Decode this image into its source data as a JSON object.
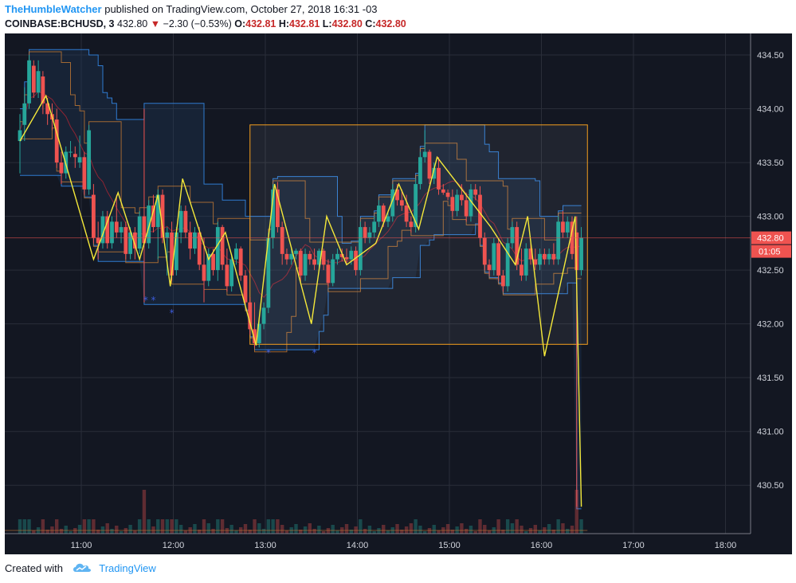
{
  "header": {
    "author": "TheHumbleWatcher",
    "published_text": "published on TradingView.com, October 27, 2018 16:31 -03"
  },
  "symbol_line": {
    "symbol": "COINBASE:BCHUSD, 3",
    "last": "432.80",
    "change": "−2.30 (−0.53%)",
    "o_label": "O:",
    "o": "432.81",
    "h_label": "H:",
    "h": "432.81",
    "l_label": "L:",
    "l": "432.80",
    "c_label": "C:",
    "c": "432.80"
  },
  "footer": {
    "created_with": "Created with",
    "brand": "TradingView",
    "logo_icon": "tradingview-cloud-icon"
  },
  "colors": {
    "background": "#131722",
    "grid": "#2a2e39",
    "up": "#26a69a",
    "down": "#ef5350",
    "zigzag": "#f5e93a",
    "channel": "#2f7bd0",
    "box": "#f59f1e",
    "price_badge": "#ef5350"
  },
  "chart_data": {
    "type": "candlestick",
    "x_ticks": [
      "11:00",
      "12:00",
      "13:00",
      "14:00",
      "15:00",
      "16:00",
      "17:00",
      "18:00"
    ],
    "y_ticks": [
      "434.50",
      "434.00",
      "433.50",
      "433.00",
      "432.50",
      "432.00",
      "431.50",
      "431.00",
      "430.50"
    ],
    "ylim": [
      430.05,
      434.7
    ],
    "last_price_label": "432.80",
    "countdown_label": "01:05",
    "grid": true,
    "zigzag": [
      {
        "t": "10:20",
        "p": 433.7
      },
      {
        "t": "10:37",
        "p": 434.12
      },
      {
        "t": "11:08",
        "p": 432.6
      },
      {
        "t": "11:24",
        "p": 433.22
      },
      {
        "t": "11:38",
        "p": 432.6
      },
      {
        "t": "11:50",
        "p": 433.2
      },
      {
        "t": "11:58",
        "p": 432.35
      },
      {
        "t": "12:06",
        "p": 433.35
      },
      {
        "t": "12:23",
        "p": 432.6
      },
      {
        "t": "12:34",
        "p": 432.85
      },
      {
        "t": "12:54",
        "p": 431.8
      },
      {
        "t": "13:06",
        "p": 433.3
      },
      {
        "t": "13:30",
        "p": 432.0
      },
      {
        "t": "13:40",
        "p": 433.0
      },
      {
        "t": "13:53",
        "p": 432.55
      },
      {
        "t": "14:12",
        "p": 432.75
      },
      {
        "t": "14:27",
        "p": 433.3
      },
      {
        "t": "14:40",
        "p": 432.88
      },
      {
        "t": "14:52",
        "p": 433.55
      },
      {
        "t": "15:27",
        "p": 432.9
      },
      {
        "t": "15:43",
        "p": 432.55
      },
      {
        "t": "15:51",
        "p": 433.0
      },
      {
        "t": "16:02",
        "p": 431.7
      },
      {
        "t": "16:22",
        "p": 433.0
      },
      {
        "t": "16:26",
        "p": 430.3
      }
    ],
    "candles": [
      {
        "t": "10:20",
        "o": 433.7,
        "h": 433.95,
        "l": 433.4,
        "c": 433.8
      },
      {
        "t": "10:23",
        "o": 433.85,
        "h": 434.2,
        "l": 433.7,
        "c": 434.05
      },
      {
        "t": "10:26",
        "o": 434.05,
        "h": 434.5,
        "l": 434.0,
        "c": 434.45
      },
      {
        "t": "10:29",
        "o": 434.4,
        "h": 434.45,
        "l": 434.1,
        "c": 434.15
      },
      {
        "t": "10:32",
        "o": 434.15,
        "h": 434.45,
        "l": 434.1,
        "c": 434.35
      },
      {
        "t": "10:35",
        "o": 434.3,
        "h": 434.35,
        "l": 433.95,
        "c": 434.05
      },
      {
        "t": "10:38",
        "o": 434.05,
        "h": 434.1,
        "l": 433.85,
        "c": 433.95
      },
      {
        "t": "10:41",
        "o": 433.95,
        "h": 434.05,
        "l": 433.8,
        "c": 433.9
      },
      {
        "t": "10:44",
        "o": 433.9,
        "h": 434.0,
        "l": 433.45,
        "c": 433.5
      },
      {
        "t": "10:47",
        "o": 433.5,
        "h": 433.6,
        "l": 433.3,
        "c": 433.4
      },
      {
        "t": "10:50",
        "o": 433.4,
        "h": 433.65,
        "l": 433.35,
        "c": 433.6
      },
      {
        "t": "10:53",
        "o": 433.6,
        "h": 433.7,
        "l": 433.55,
        "c": 433.6
      },
      {
        "t": "10:56",
        "o": 433.58,
        "h": 433.65,
        "l": 433.45,
        "c": 433.55
      },
      {
        "t": "10:59",
        "o": 433.5,
        "h": 433.75,
        "l": 433.45,
        "c": 433.55
      },
      {
        "t": "11:02",
        "o": 433.55,
        "h": 433.6,
        "l": 433.2,
        "c": 433.25
      },
      {
        "t": "11:05",
        "o": 433.25,
        "h": 433.85,
        "l": 433.2,
        "c": 433.8
      },
      {
        "t": "11:08",
        "o": 433.2,
        "h": 433.3,
        "l": 432.75,
        "c": 432.8
      },
      {
        "t": "11:11",
        "o": 432.8,
        "h": 432.95,
        "l": 432.6,
        "c": 432.75
      },
      {
        "t": "11:14",
        "o": 432.75,
        "h": 433.05,
        "l": 432.7,
        "c": 433.0
      },
      {
        "t": "11:17",
        "o": 433.0,
        "h": 433.05,
        "l": 432.7,
        "c": 432.75
      },
      {
        "t": "11:20",
        "o": 432.75,
        "h": 433.0,
        "l": 432.7,
        "c": 432.95
      },
      {
        "t": "11:23",
        "o": 432.95,
        "h": 433.2,
        "l": 432.8,
        "c": 432.85
      },
      {
        "t": "11:26",
        "o": 432.85,
        "h": 432.95,
        "l": 432.75,
        "c": 432.9
      },
      {
        "t": "11:29",
        "o": 432.9,
        "h": 432.95,
        "l": 432.6,
        "c": 432.65
      },
      {
        "t": "11:32",
        "o": 432.65,
        "h": 432.9,
        "l": 432.6,
        "c": 432.85
      },
      {
        "t": "11:35",
        "o": 432.85,
        "h": 432.9,
        "l": 432.6,
        "c": 432.7
      },
      {
        "t": "11:38",
        "o": 432.7,
        "h": 433.05,
        "l": 432.65,
        "c": 433.0
      },
      {
        "t": "11:41",
        "o": 433.0,
        "h": 434.0,
        "l": 432.2,
        "c": 432.75
      },
      {
        "t": "11:44",
        "o": 432.75,
        "h": 433.15,
        "l": 432.7,
        "c": 433.1
      },
      {
        "t": "11:47",
        "o": 433.1,
        "h": 433.2,
        "l": 432.85,
        "c": 432.9
      },
      {
        "t": "11:50",
        "o": 432.9,
        "h": 433.25,
        "l": 432.6,
        "c": 433.2
      },
      {
        "t": "11:53",
        "o": 433.2,
        "h": 433.25,
        "l": 432.75,
        "c": 432.8
      },
      {
        "t": "11:56",
        "o": 432.8,
        "h": 432.9,
        "l": 432.45,
        "c": 432.85
      },
      {
        "t": "11:59",
        "o": 432.85,
        "h": 432.95,
        "l": 432.4,
        "c": 432.45
      },
      {
        "t": "12:02",
        "o": 432.5,
        "h": 432.9,
        "l": 432.45,
        "c": 432.85
      },
      {
        "t": "12:05",
        "o": 432.85,
        "h": 433.1,
        "l": 432.75,
        "c": 433.05
      },
      {
        "t": "12:08",
        "o": 433.05,
        "h": 433.1,
        "l": 432.8,
        "c": 432.85
      },
      {
        "t": "12:11",
        "o": 432.85,
        "h": 432.95,
        "l": 432.6,
        "c": 432.7
      },
      {
        "t": "12:14",
        "o": 432.7,
        "h": 432.9,
        "l": 432.65,
        "c": 432.85
      },
      {
        "t": "12:17",
        "o": 432.85,
        "h": 432.9,
        "l": 432.5,
        "c": 432.55
      },
      {
        "t": "12:20",
        "o": 432.55,
        "h": 432.8,
        "l": 432.2,
        "c": 432.4
      },
      {
        "t": "12:23",
        "o": 432.4,
        "h": 432.7,
        "l": 432.35,
        "c": 432.65
      },
      {
        "t": "12:26",
        "o": 432.65,
        "h": 432.7,
        "l": 432.45,
        "c": 432.5
      },
      {
        "t": "12:29",
        "o": 432.5,
        "h": 432.95,
        "l": 432.4,
        "c": 432.9
      },
      {
        "t": "12:32",
        "o": 432.9,
        "h": 432.92,
        "l": 432.5,
        "c": 432.55
      },
      {
        "t": "12:35",
        "o": 432.55,
        "h": 432.7,
        "l": 432.3,
        "c": 432.35
      },
      {
        "t": "12:38",
        "o": 432.35,
        "h": 432.65,
        "l": 432.3,
        "c": 432.6
      },
      {
        "t": "12:41",
        "o": 432.6,
        "h": 432.75,
        "l": 432.55,
        "c": 432.7
      },
      {
        "t": "12:44",
        "o": 432.7,
        "h": 432.72,
        "l": 432.4,
        "c": 432.45
      },
      {
        "t": "12:47",
        "o": 432.45,
        "h": 432.5,
        "l": 432.15,
        "c": 432.2
      },
      {
        "t": "12:50",
        "o": 432.2,
        "h": 432.25,
        "l": 431.9,
        "c": 431.95
      },
      {
        "t": "12:53",
        "o": 431.95,
        "h": 432.2,
        "l": 431.78,
        "c": 431.82
      },
      {
        "t": "12:56",
        "o": 431.82,
        "h": 432.05,
        "l": 431.78,
        "c": 432.0
      },
      {
        "t": "12:59",
        "o": 432.0,
        "h": 432.2,
        "l": 431.95,
        "c": 432.15
      },
      {
        "t": "13:02",
        "o": 432.15,
        "h": 432.85,
        "l": 432.1,
        "c": 432.8
      },
      {
        "t": "13:05",
        "o": 432.8,
        "h": 433.3,
        "l": 432.7,
        "c": 433.25
      },
      {
        "t": "13:08",
        "o": 433.25,
        "h": 433.32,
        "l": 432.85,
        "c": 432.9
      },
      {
        "t": "13:11",
        "o": 432.9,
        "h": 432.95,
        "l": 432.55,
        "c": 432.65
      },
      {
        "t": "13:14",
        "o": 432.65,
        "h": 432.7,
        "l": 432.55,
        "c": 432.6
      },
      {
        "t": "13:17",
        "o": 432.6,
        "h": 432.7,
        "l": 432.55,
        "c": 432.65
      },
      {
        "t": "13:20",
        "o": 432.65,
        "h": 432.7,
        "l": 432.6,
        "c": 432.68
      },
      {
        "t": "13:23",
        "o": 432.68,
        "h": 432.7,
        "l": 432.4,
        "c": 432.45
      },
      {
        "t": "13:26",
        "o": 432.45,
        "h": 432.7,
        "l": 432.4,
        "c": 432.65
      },
      {
        "t": "13:29",
        "o": 432.65,
        "h": 432.68,
        "l": 432.55,
        "c": 432.6
      },
      {
        "t": "13:32",
        "o": 432.6,
        "h": 432.7,
        "l": 432.5,
        "c": 432.55
      },
      {
        "t": "13:35",
        "o": 432.55,
        "h": 432.7,
        "l": 432.5,
        "c": 432.68
      },
      {
        "t": "13:38",
        "o": 432.68,
        "h": 432.7,
        "l": 432.5,
        "c": 432.55
      },
      {
        "t": "13:41",
        "o": 432.55,
        "h": 432.6,
        "l": 432.35,
        "c": 432.38
      },
      {
        "t": "13:44",
        "o": 432.38,
        "h": 432.65,
        "l": 432.35,
        "c": 432.6
      },
      {
        "t": "13:47",
        "o": 432.6,
        "h": 432.7,
        "l": 432.55,
        "c": 432.65
      },
      {
        "t": "13:50",
        "o": 432.65,
        "h": 432.7,
        "l": 432.58,
        "c": 432.62
      },
      {
        "t": "13:53",
        "o": 432.62,
        "h": 432.7,
        "l": 432.55,
        "c": 432.6
      },
      {
        "t": "13:56",
        "o": 432.6,
        "h": 432.72,
        "l": 432.55,
        "c": 432.68
      },
      {
        "t": "13:59",
        "o": 432.68,
        "h": 432.72,
        "l": 432.45,
        "c": 432.5
      },
      {
        "t": "14:02",
        "o": 432.5,
        "h": 432.95,
        "l": 432.45,
        "c": 432.9
      },
      {
        "t": "14:05",
        "o": 432.9,
        "h": 432.95,
        "l": 432.75,
        "c": 432.8
      },
      {
        "t": "14:08",
        "o": 432.8,
        "h": 432.9,
        "l": 432.75,
        "c": 432.85
      },
      {
        "t": "14:11",
        "o": 432.85,
        "h": 433.0,
        "l": 432.8,
        "c": 432.95
      },
      {
        "t": "14:14",
        "o": 432.95,
        "h": 433.15,
        "l": 432.9,
        "c": 433.1
      },
      {
        "t": "14:17",
        "o": 433.1,
        "h": 433.12,
        "l": 432.9,
        "c": 432.95
      },
      {
        "t": "14:20",
        "o": 432.95,
        "h": 433.05,
        "l": 432.9,
        "c": 433.0
      },
      {
        "t": "14:23",
        "o": 433.0,
        "h": 433.3,
        "l": 432.95,
        "c": 433.25
      },
      {
        "t": "14:26",
        "o": 433.25,
        "h": 433.3,
        "l": 433.1,
        "c": 433.15
      },
      {
        "t": "14:29",
        "o": 433.15,
        "h": 433.25,
        "l": 433.05,
        "c": 433.1
      },
      {
        "t": "14:32",
        "o": 433.1,
        "h": 433.2,
        "l": 432.9,
        "c": 432.95
      },
      {
        "t": "14:35",
        "o": 432.95,
        "h": 433.0,
        "l": 432.85,
        "c": 432.9
      },
      {
        "t": "14:38",
        "o": 432.9,
        "h": 433.35,
        "l": 432.85,
        "c": 433.3
      },
      {
        "t": "14:41",
        "o": 433.3,
        "h": 433.6,
        "l": 433.25,
        "c": 433.55
      },
      {
        "t": "14:44",
        "o": 433.55,
        "h": 433.8,
        "l": 433.5,
        "c": 433.6
      },
      {
        "t": "14:47",
        "o": 433.6,
        "h": 433.62,
        "l": 433.3,
        "c": 433.35
      },
      {
        "t": "14:50",
        "o": 433.35,
        "h": 433.5,
        "l": 433.3,
        "c": 433.45
      },
      {
        "t": "14:53",
        "o": 433.45,
        "h": 433.55,
        "l": 433.2,
        "c": 433.25
      },
      {
        "t": "14:56",
        "o": 433.25,
        "h": 433.3,
        "l": 433.2,
        "c": 433.22
      },
      {
        "t": "14:59",
        "o": 433.22,
        "h": 433.25,
        "l": 433.15,
        "c": 433.18
      },
      {
        "t": "15:02",
        "o": 433.18,
        "h": 433.25,
        "l": 433.0,
        "c": 433.05
      },
      {
        "t": "15:05",
        "o": 433.05,
        "h": 433.25,
        "l": 433.0,
        "c": 433.2
      },
      {
        "t": "15:08",
        "o": 433.2,
        "h": 433.3,
        "l": 433.1,
        "c": 433.15
      },
      {
        "t": "15:11",
        "o": 433.15,
        "h": 433.22,
        "l": 432.95,
        "c": 433.0
      },
      {
        "t": "15:14",
        "o": 433.0,
        "h": 433.3,
        "l": 432.95,
        "c": 433.25
      },
      {
        "t": "15:17",
        "o": 433.25,
        "h": 433.3,
        "l": 433.15,
        "c": 433.2
      },
      {
        "t": "15:20",
        "o": 433.2,
        "h": 433.28,
        "l": 432.75,
        "c": 432.8
      },
      {
        "t": "15:23",
        "o": 432.8,
        "h": 432.85,
        "l": 432.5,
        "c": 432.55
      },
      {
        "t": "15:26",
        "o": 432.55,
        "h": 432.6,
        "l": 432.45,
        "c": 432.5
      },
      {
        "t": "15:29",
        "o": 432.5,
        "h": 432.8,
        "l": 432.45,
        "c": 432.75
      },
      {
        "t": "15:32",
        "o": 432.75,
        "h": 432.8,
        "l": 432.4,
        "c": 432.45
      },
      {
        "t": "15:35",
        "o": 432.45,
        "h": 432.5,
        "l": 432.3,
        "c": 432.35
      },
      {
        "t": "15:38",
        "o": 432.35,
        "h": 432.8,
        "l": 432.3,
        "c": 432.75
      },
      {
        "t": "15:41",
        "o": 432.75,
        "h": 432.95,
        "l": 432.7,
        "c": 432.9
      },
      {
        "t": "15:44",
        "o": 432.9,
        "h": 432.95,
        "l": 432.5,
        "c": 432.55
      },
      {
        "t": "15:47",
        "o": 432.55,
        "h": 432.7,
        "l": 432.4,
        "c": 432.45
      },
      {
        "t": "15:50",
        "o": 432.45,
        "h": 432.75,
        "l": 432.4,
        "c": 432.7
      },
      {
        "t": "15:53",
        "o": 432.7,
        "h": 432.75,
        "l": 432.55,
        "c": 432.6
      },
      {
        "t": "15:56",
        "o": 432.6,
        "h": 432.7,
        "l": 432.5,
        "c": 432.55
      },
      {
        "t": "15:59",
        "o": 432.55,
        "h": 432.7,
        "l": 432.5,
        "c": 432.65
      },
      {
        "t": "16:02",
        "o": 432.65,
        "h": 432.7,
        "l": 432.55,
        "c": 432.6
      },
      {
        "t": "16:05",
        "o": 432.6,
        "h": 432.7,
        "l": 432.55,
        "c": 432.65
      },
      {
        "t": "16:08",
        "o": 432.65,
        "h": 432.75,
        "l": 432.55,
        "c": 432.6
      },
      {
        "t": "16:11",
        "o": 432.6,
        "h": 433.0,
        "l": 432.55,
        "c": 432.95
      },
      {
        "t": "16:14",
        "o": 432.95,
        "h": 433.05,
        "l": 432.8,
        "c": 432.85
      },
      {
        "t": "16:17",
        "o": 432.85,
        "h": 433.0,
        "l": 432.8,
        "c": 432.95
      },
      {
        "t": "16:20",
        "o": 432.95,
        "h": 433.0,
        "l": 432.6,
        "c": 432.65
      },
      {
        "t": "16:23",
        "o": 432.85,
        "h": 433.0,
        "l": 430.3,
        "c": 432.5
      },
      {
        "t": "16:26",
        "o": 432.5,
        "h": 432.9,
        "l": 432.45,
        "c": 432.8
      }
    ]
  }
}
